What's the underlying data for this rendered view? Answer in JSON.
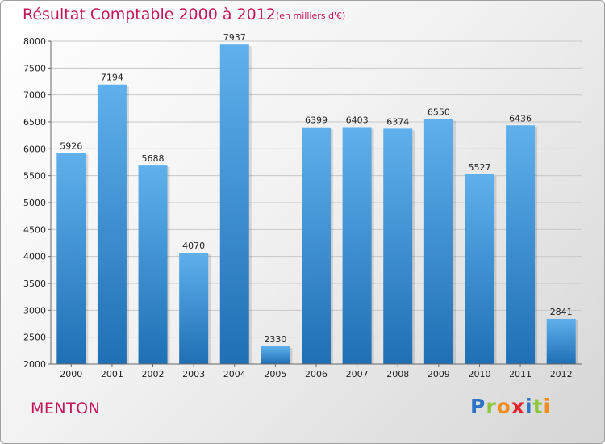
{
  "title": "Résultat Comptable 2000 à 2012",
  "subtitle": "(en milliers d'€)",
  "city": "MENTON",
  "logo": {
    "letters": [
      {
        "ch": "P",
        "color": "#2a73c6"
      },
      {
        "ch": "r",
        "color": "#8cc63f"
      },
      {
        "ch": "o",
        "color": "#f28c1e"
      },
      {
        "ch": "x",
        "color": "#e3262e"
      },
      {
        "ch": "i",
        "color": "#2a73c6"
      },
      {
        "ch": "t",
        "color": "#8cc63f"
      },
      {
        "ch": "i",
        "color": "#f28c1e"
      }
    ]
  },
  "chart_data": {
    "type": "bar",
    "categories": [
      "2000",
      "2001",
      "2002",
      "2003",
      "2004",
      "2005",
      "2006",
      "2007",
      "2008",
      "2009",
      "2010",
      "2011",
      "2012"
    ],
    "values": [
      5926,
      7194,
      5688,
      4070,
      7937,
      2330,
      6399,
      6403,
      6374,
      6550,
      5527,
      6436,
      2841
    ],
    "ylim": [
      2000,
      8000
    ],
    "yticks": [
      2000,
      2500,
      3000,
      3500,
      4000,
      4500,
      5000,
      5500,
      6000,
      6500,
      7000,
      7500,
      8000
    ],
    "grid": true,
    "bar_color": "#3a8fd6"
  }
}
